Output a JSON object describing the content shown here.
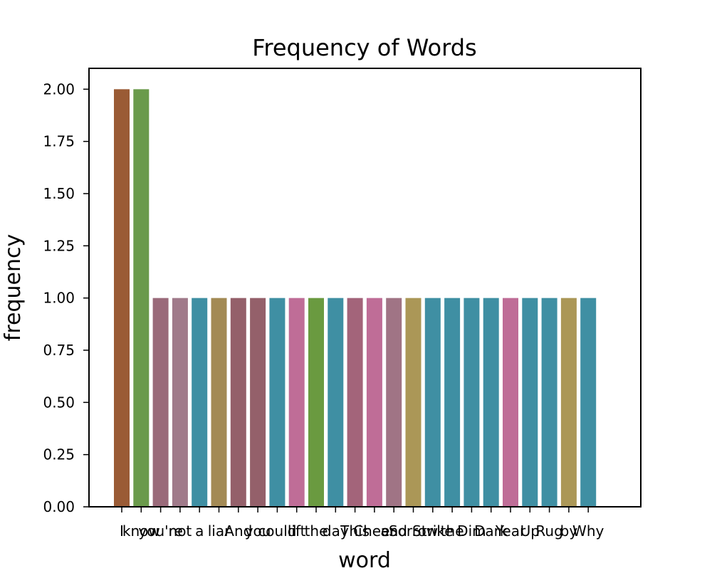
{
  "chart_data": {
    "type": "bar",
    "title": "Frequency of Words",
    "xlabel": "word",
    "ylabel": "frequency",
    "ylim": [
      0,
      2.1
    ],
    "yticks": [
      "0.00",
      "0.25",
      "0.50",
      "0.75",
      "1.00",
      "1.25",
      "1.50",
      "1.75",
      "2.00"
    ],
    "categories": [
      "I",
      "know",
      "you're",
      "not",
      "a",
      "liar",
      "And",
      "you",
      "could",
      "lift",
      "the",
      "day",
      "This",
      "Cheer",
      "and",
      "Sorrow",
      "Strike",
      "the",
      "Dim",
      "Dark",
      "Year",
      "Up",
      "Rug",
      "by",
      "Why"
    ],
    "values": [
      2,
      2,
      1,
      1,
      1,
      1,
      1,
      1,
      1,
      1,
      1,
      1,
      1,
      1,
      1,
      1,
      1,
      1,
      1,
      1,
      1,
      1,
      1,
      1,
      1
    ],
    "colors": [
      "#9a5b35",
      "#6a9a4b",
      "#9a6a7a",
      "#a07a8a",
      "#3f8fa3",
      "#a38a55",
      "#94606a",
      "#94606a",
      "#3f8fa3",
      "#bf6d97",
      "#6a9a40",
      "#3f8fa3",
      "#a3647a",
      "#bf6d97",
      "#a07485",
      "#ab9757",
      "#3f8fa3",
      "#3f8fa3",
      "#3f8fa3",
      "#3f8fa3",
      "#bf6d97",
      "#3f8fa3",
      "#3f8fa3",
      "#ab9757",
      "#3f8fa3"
    ]
  }
}
